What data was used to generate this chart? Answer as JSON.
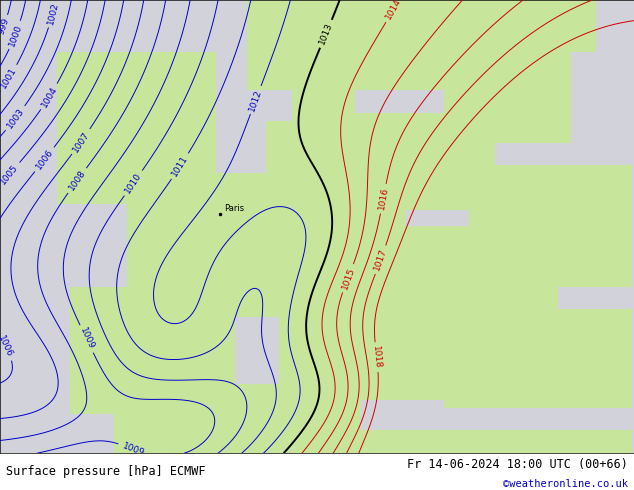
{
  "title_left": "Surface pressure [hPa] ECMWF",
  "title_right": "Fr 14-06-2024 18:00 UTC (00+66)",
  "credit": "©weatheronline.co.uk",
  "land_color_rgba": [
    200,
    230,
    155,
    255
  ],
  "ocean_color_rgba": [
    210,
    210,
    218,
    255
  ],
  "fig_width": 6.34,
  "fig_height": 4.9,
  "dpi": 100,
  "blue_color": "#0000cc",
  "black_color": "#000000",
  "red_color": "#cc0000",
  "label_fontsize": 6.5,
  "title_fontsize": 8.5,
  "credit_fontsize": 7.5,
  "credit_color": "#0000cc",
  "paris_lon": 2.35,
  "paris_lat": 48.85
}
